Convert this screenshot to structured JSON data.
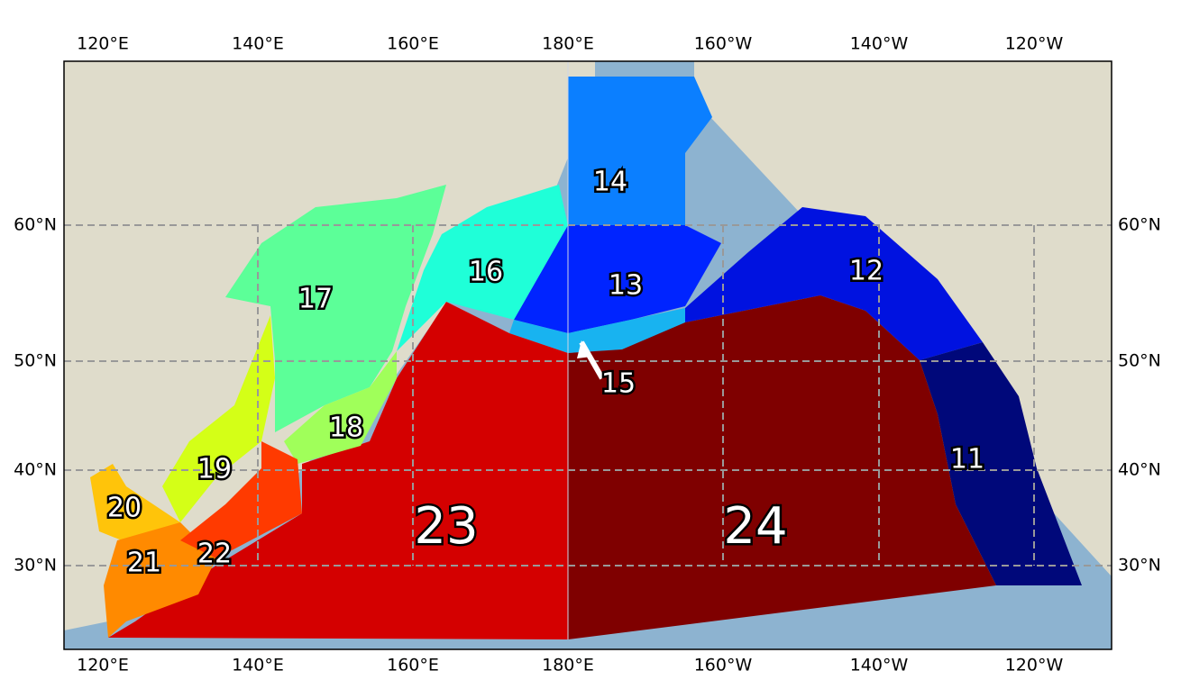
{
  "axes": {
    "lon_labels": [
      "120°E",
      "140°E",
      "160°E",
      "180°E",
      "160°W",
      "140°W",
      "120°W"
    ],
    "lat_labels": [
      "60°N",
      "50°N",
      "40°N",
      "30°N"
    ]
  },
  "regions": [
    {
      "label": "11"
    },
    {
      "label": "12"
    },
    {
      "label": "13"
    },
    {
      "label": "14"
    },
    {
      "label": "15"
    },
    {
      "label": "16"
    },
    {
      "label": "17"
    },
    {
      "label": "18"
    },
    {
      "label": "19"
    },
    {
      "label": "20"
    },
    {
      "label": "21"
    },
    {
      "label": "22"
    },
    {
      "label": "23"
    },
    {
      "label": "24"
    }
  ]
}
